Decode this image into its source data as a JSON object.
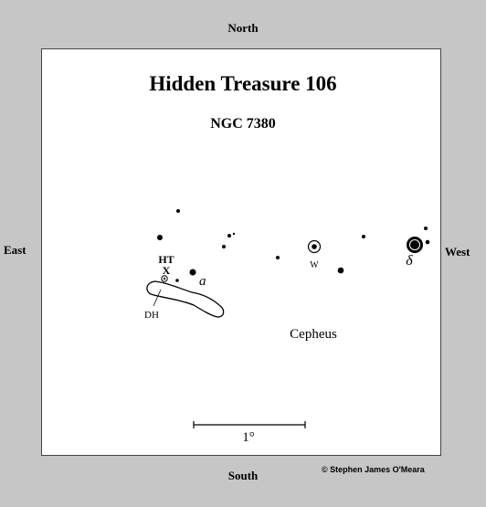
{
  "directions": {
    "north": "North",
    "south": "South",
    "east": "East",
    "west": "West"
  },
  "title": "Hidden Treasure 106",
  "subtitle": "NGC 7380",
  "labels": {
    "ht": "HT",
    "x_marker": "X",
    "star_a": "a",
    "star_w": "W",
    "delta": "δ",
    "dh": "DH",
    "constellation": "Cepheus",
    "scale": "1°"
  },
  "credit": "© Stephen James O'Meara",
  "colors": {
    "background": "#c6c6c6",
    "panel": "#ffffff",
    "ink": "#000000"
  }
}
